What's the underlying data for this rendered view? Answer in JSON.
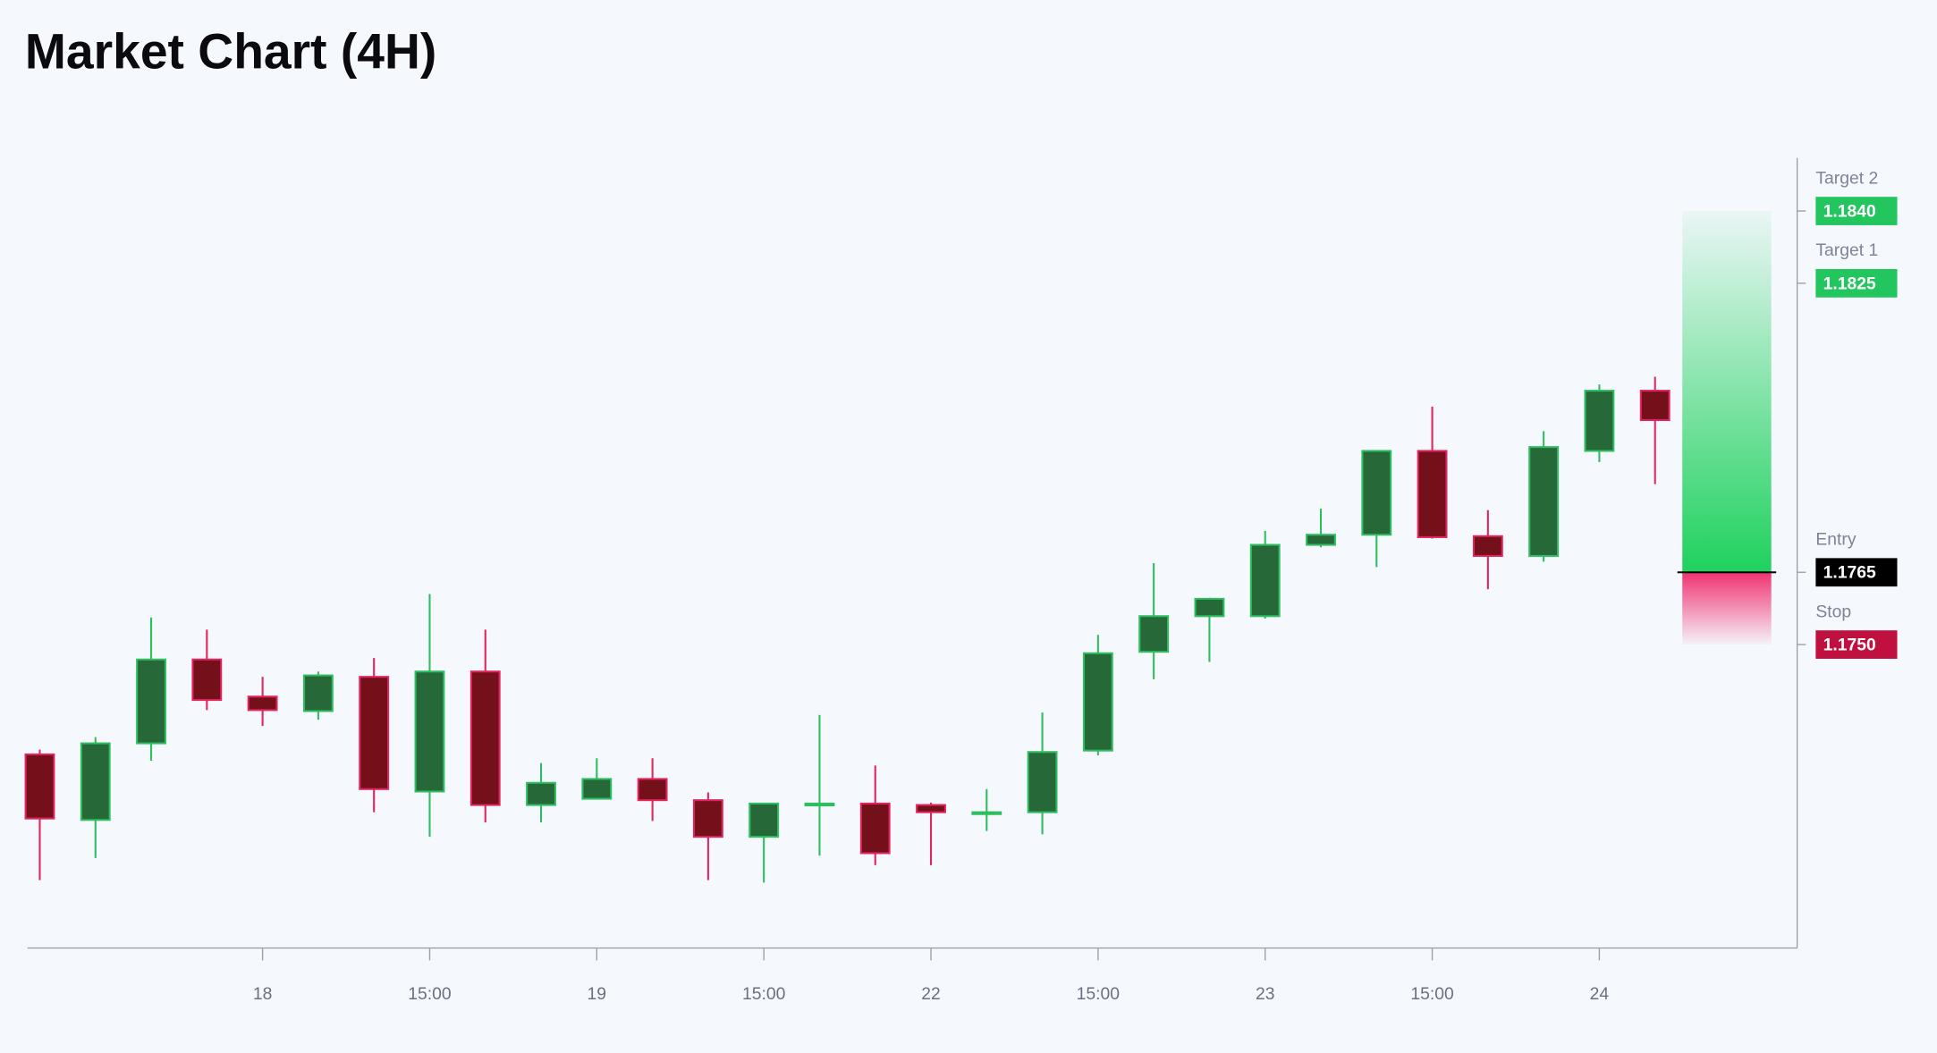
{
  "chart_data": {
    "type": "candlestick",
    "title": "Market Chart (4H)",
    "categories": [
      null,
      null,
      null,
      null,
      "18",
      null,
      null,
      "15:00",
      null,
      null,
      "19",
      null,
      null,
      "15:00",
      null,
      null,
      "22",
      null,
      null,
      "15:00",
      null,
      null,
      "23",
      null,
      null,
      "15:00",
      null,
      null,
      "24",
      null
    ],
    "open": [
      1.17272,
      1.17136,
      1.17295,
      1.17469,
      1.17392,
      1.17362,
      1.17433,
      1.17195,
      1.17444,
      1.17167,
      1.1718,
      1.17221,
      1.17177,
      1.17101,
      1.17167,
      1.1717,
      1.17167,
      1.17149,
      1.17152,
      1.1728,
      1.17485,
      1.17559,
      1.17559,
      1.17707,
      1.17728,
      1.17902,
      1.17725,
      1.17684,
      1.17902,
      1.18027
    ],
    "high": [
      1.17282,
      1.17308,
      1.17556,
      1.17531,
      1.17433,
      1.17444,
      1.17472,
      1.17605,
      1.17531,
      1.17254,
      1.17264,
      1.17264,
      1.17193,
      1.1717,
      1.17354,
      1.17249,
      1.17172,
      1.172,
      1.17359,
      1.1752,
      1.17669,
      1.17597,
      1.17736,
      1.17782,
      1.17902,
      1.17994,
      1.17779,
      1.17943,
      1.1804,
      1.18056
    ],
    "low": [
      1.17011,
      1.17057,
      1.17259,
      1.17364,
      1.17331,
      1.17344,
      1.17152,
      1.17101,
      1.17131,
      1.17131,
      1.1718,
      1.17134,
      1.17011,
      1.17006,
      1.17062,
      1.17042,
      1.17042,
      1.17113,
      1.17106,
      1.1727,
      1.17428,
      1.17464,
      1.17554,
      1.17702,
      1.17661,
      1.1772,
      1.17615,
      1.17672,
      1.17879,
      1.17833
    ],
    "close": [
      1.17139,
      1.17295,
      1.17469,
      1.17385,
      1.17364,
      1.17436,
      1.172,
      1.17444,
      1.17167,
      1.17213,
      1.17221,
      1.17177,
      1.17101,
      1.1717,
      1.1717,
      1.17067,
      1.17152,
      1.17152,
      1.17277,
      1.17482,
      1.17559,
      1.17595,
      1.17707,
      1.17728,
      1.17902,
      1.17723,
      1.17684,
      1.1791,
      1.18027,
      1.17966
    ],
    "up_color": "#2ebd5f",
    "up_fill": "#266838",
    "down_color": "#e0245e",
    "down_fill": "#74101a",
    "ylim": [
      1.1687,
      1.1851
    ],
    "levels": {
      "names": [
        "Target 2",
        "Target 1",
        "Entry",
        "Stop"
      ],
      "values": [
        1.184,
        1.1825,
        1.1765,
        1.175
      ],
      "value_labels": [
        "1.1840",
        "1.1825",
        "1.1765",
        "1.1750"
      ],
      "colors": [
        "#22c55e",
        "#22c55e",
        "#000000",
        "#c0103f"
      ]
    }
  }
}
